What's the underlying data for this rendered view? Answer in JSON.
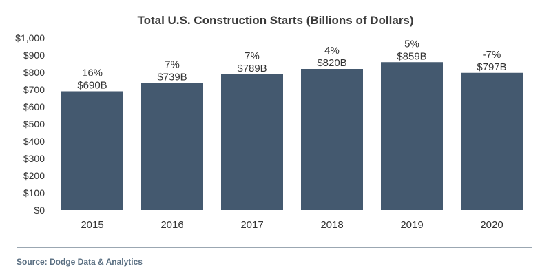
{
  "chart_data": {
    "type": "bar",
    "title": "Total U.S. Construction Starts (Billions of Dollars)",
    "xlabel": "",
    "ylabel": "",
    "categories": [
      "2015",
      "2016",
      "2017",
      "2018",
      "2019",
      "2020"
    ],
    "values": [
      690,
      739,
      789,
      820,
      859,
      797
    ],
    "value_labels": [
      "$690B",
      "$739B",
      "$789B",
      "$820B",
      "$859B",
      "$797B"
    ],
    "change_labels": [
      "16%",
      "7%",
      "7%",
      "4%",
      "5%",
      "-7%"
    ],
    "ylim": [
      0,
      1000
    ],
    "y_ticks": [
      0,
      100,
      200,
      300,
      400,
      500,
      600,
      700,
      800,
      900,
      1000
    ],
    "y_tick_labels": [
      "$0",
      "$100",
      "$200",
      "$300",
      "$400",
      "$500",
      "$600",
      "$700",
      "$800",
      "$900",
      "$1,000"
    ],
    "grid": false,
    "legend": "none",
    "bar_color": "#44596f",
    "source": "Source: Dodge Data & Analytics"
  }
}
